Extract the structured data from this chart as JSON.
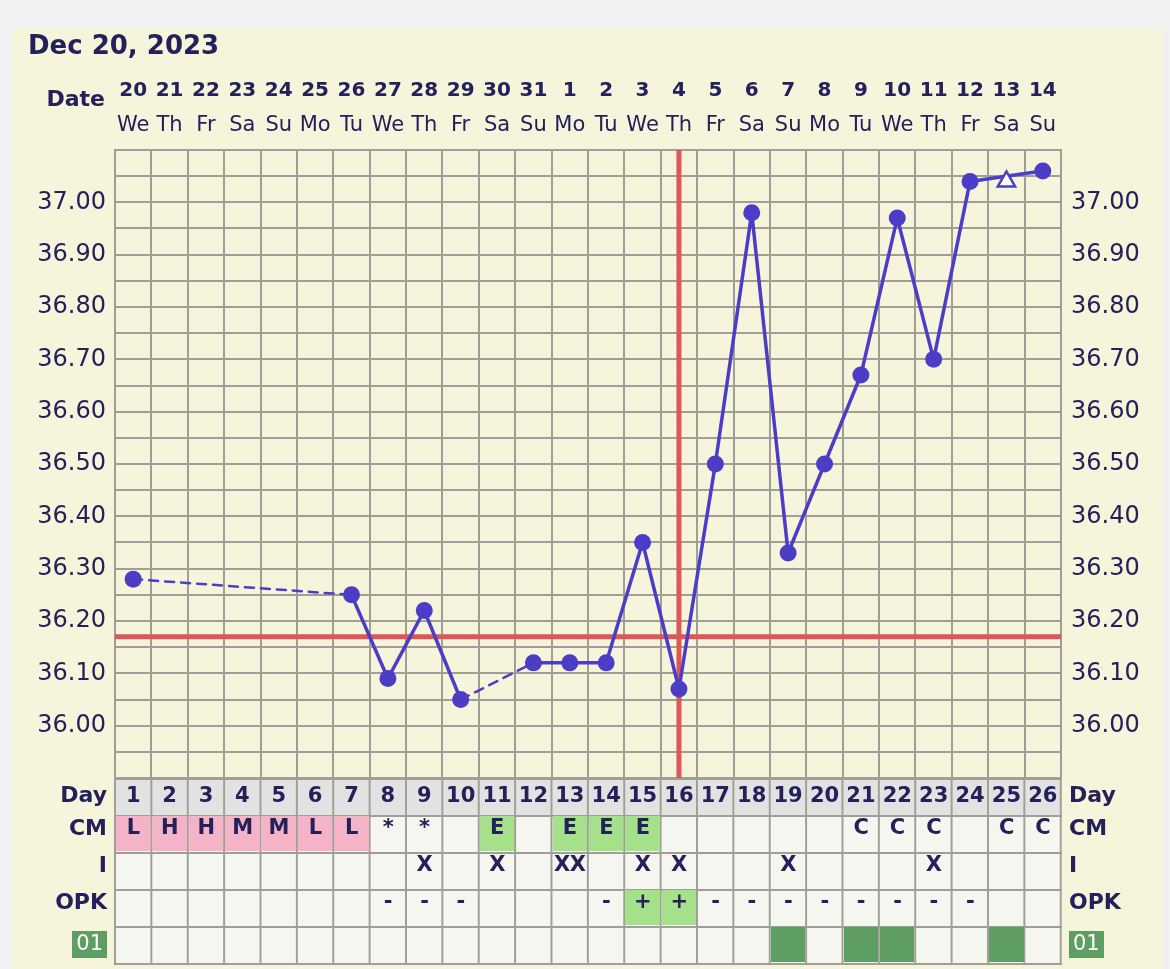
{
  "chart_data": [
    {
      "type": "line",
      "title": "Dec 20, 2023",
      "xlabel": "Date",
      "categories": [
        "20\nWe",
        "21\nTh",
        "22\nFr",
        "23\nSa",
        "24\nSu",
        "25\nMo",
        "26\nTu",
        "27\nWe",
        "28\nTh",
        "29\nFr",
        "30\nSa",
        "31\nSu",
        "1\nMo",
        "2\nTu",
        "3\nWe",
        "4\nTh",
        "5\nFr",
        "6\nSa",
        "7\nSu",
        "8\nMo",
        "9\nTu",
        "10\nWe",
        "11\nTh",
        "12\nFr",
        "13\nSa",
        "14\nSu"
      ],
      "x2label": "Day",
      "x2lim": [
        0.5,
        26.5
      ],
      "x2ticks": [
        1,
        2,
        3,
        4,
        5,
        6,
        7,
        8,
        9,
        10,
        11,
        12,
        13,
        14,
        15,
        16,
        17,
        18,
        19,
        20,
        21,
        22,
        23,
        24,
        25,
        26
      ],
      "ylim": [
        35.9,
        37.1
      ],
      "yticks": [
        {
          "value": 35.9,
          "label": null
        },
        {
          "value": 35.95,
          "label": null
        },
        {
          "value": 36,
          "label": "36.00"
        },
        {
          "value": 36.05,
          "label": null
        },
        {
          "value": 36.1,
          "label": "36.10"
        },
        {
          "value": 36.15,
          "label": null
        },
        {
          "value": 36.2,
          "label": "36.20"
        },
        {
          "value": 36.25,
          "label": null
        },
        {
          "value": 36.3,
          "label": "36.30"
        },
        {
          "value": 36.35,
          "label": null
        },
        {
          "value": 36.4,
          "label": "36.40"
        },
        {
          "value": 36.45,
          "label": null
        },
        {
          "value": 36.5,
          "label": "36.50"
        },
        {
          "value": 36.55,
          "label": null
        },
        {
          "value": 36.6,
          "label": "36.60"
        },
        {
          "value": 36.65,
          "label": null
        },
        {
          "value": 36.7,
          "label": "36.70"
        },
        {
          "value": 36.75,
          "label": null
        },
        {
          "value": 36.8,
          "label": "36.80"
        },
        {
          "value": 36.85,
          "label": null
        },
        {
          "value": 36.9,
          "label": "36.90"
        },
        {
          "value": 36.95,
          "label": null
        },
        {
          "value": 37,
          "label": "37.00"
        },
        {
          "value": 37.05,
          "label": null
        },
        {
          "value": 37.1,
          "label": null
        }
      ],
      "y2lim": [
        35.9,
        37.1
      ],
      "y2ticks": [
        {
          "value": 36,
          "label": "36.00"
        },
        {
          "value": 36.1,
          "label": "36.10"
        },
        {
          "value": 36.2,
          "label": "36.20"
        },
        {
          "value": 36.3,
          "label": "36.30"
        },
        {
          "value": 36.4,
          "label": "36.40"
        },
        {
          "value": 36.5,
          "label": "36.50"
        },
        {
          "value": 36.6,
          "label": "36.60"
        },
        {
          "value": 36.7,
          "label": "36.70"
        },
        {
          "value": 36.8,
          "label": "36.80"
        },
        {
          "value": 36.9,
          "label": "36.90"
        },
        {
          "value": 37,
          "label": "37.00"
        }
      ],
      "grid": true,
      "marker": "circle",
      "series": [
        {
          "color": "#4b3dc6",
          "values": [
            36.28,
            null,
            null,
            null,
            null,
            null,
            36.25,
            36.09,
            36.22,
            36.05,
            null,
            36.12,
            36.12,
            36.12,
            36.35,
            36.07,
            36.5,
            36.98,
            36.33,
            36.5,
            36.67,
            36.97,
            36.7,
            37.04,
            null,
            37.06
          ]
        },
        {
          "type": "scatter",
          "marker": "triangle",
          "color": "#4b3dc6",
          "values": [
            null,
            null,
            null,
            null,
            null,
            null,
            null,
            null,
            null,
            null,
            null,
            null,
            null,
            null,
            null,
            null,
            null,
            null,
            null,
            null,
            null,
            null,
            null,
            null,
            37.04,
            null
          ]
        }
      ],
      "ref_lines": [
        {
          "axis": "y",
          "value": 36.17,
          "color": "#dc5757"
        },
        {
          "axis": "x",
          "value": "4\nTh",
          "color": "#dc5757"
        }
      ]
    },
    {
      "type": "other",
      "y_categories": [
        "CM",
        "I",
        "OPK",
        "01"
      ],
      "y2_categories": [
        "CM",
        "I",
        "OPK",
        "01"
      ],
      "cell_labels": [
        [
          "L",
          "H",
          "H",
          "M",
          "M",
          "L",
          "L",
          "*",
          "*",
          null,
          "E",
          null,
          "E",
          "E",
          "E",
          null,
          null,
          null,
          null,
          null,
          "C",
          "C",
          "C",
          null,
          "C",
          "C"
        ],
        [
          null,
          null,
          null,
          null,
          null,
          null,
          null,
          null,
          "X",
          null,
          "X",
          null,
          "XX",
          null,
          "X",
          "X",
          null,
          null,
          "X",
          null,
          null,
          null,
          "X",
          null,
          null,
          null
        ],
        [
          null,
          null,
          null,
          null,
          null,
          null,
          null,
          "-",
          "-",
          "-",
          null,
          null,
          null,
          "-",
          "+",
          "+",
          "-",
          "-",
          "-",
          "-",
          "-",
          "-",
          "-",
          "-",
          null,
          null
        ],
        [
          null,
          null,
          null,
          null,
          null,
          null,
          null,
          null,
          null,
          null,
          null,
          null,
          null,
          null,
          null,
          null,
          null,
          null,
          null,
          null,
          null,
          null,
          null,
          null,
          null,
          null
        ]
      ],
      "colors": [
        [
          "#f4b3c6",
          "#f4b3c6",
          "#f4b3c6",
          "#f4b3c6",
          "#f4b3c6",
          "#f4b3c6",
          "#f4b3c6",
          null,
          null,
          null,
          "#a5e08a",
          null,
          "#a5e08a",
          "#a5e08a",
          "#a5e08a",
          null,
          null,
          null,
          null,
          null,
          null,
          null,
          null,
          null,
          null,
          null
        ],
        [
          null,
          null,
          null,
          null,
          null,
          null,
          null,
          null,
          null,
          null,
          null,
          null,
          null,
          null,
          null,
          null,
          null,
          null,
          null,
          null,
          null,
          null,
          null,
          null,
          null,
          null
        ],
        [
          null,
          null,
          null,
          null,
          null,
          null,
          null,
          null,
          null,
          null,
          null,
          null,
          null,
          null,
          "#a5e08a",
          "#a5e08a",
          null,
          null,
          null,
          null,
          null,
          null,
          null,
          null,
          null,
          null
        ],
        [
          null,
          null,
          null,
          null,
          null,
          null,
          null,
          null,
          null,
          null,
          null,
          null,
          null,
          null,
          null,
          null,
          null,
          null,
          "#5f9e62",
          null,
          "#5f9e62",
          "#5f9e62",
          null,
          null,
          "#5f9e62",
          null
        ]
      ]
    }
  ]
}
